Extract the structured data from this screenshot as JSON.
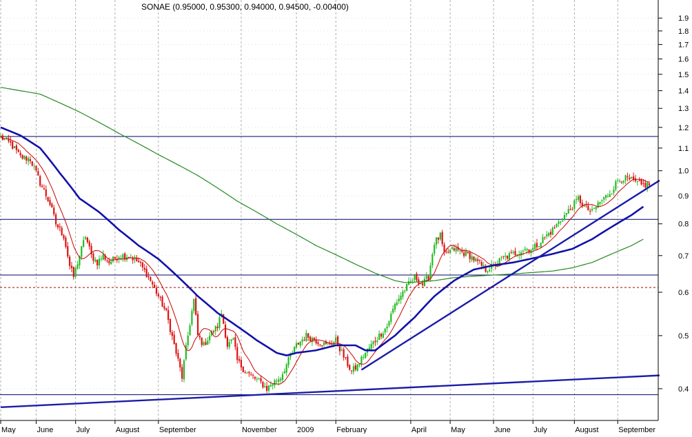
{
  "chart_data": {
    "type": "candlestick",
    "title": "SONAE (0.95000, 0.95300, 0.94000, 0.94500, -0.00400)",
    "y_scale": "log",
    "ylim": [
      0.35,
      2.05
    ],
    "y_ticks": [
      0.4,
      0.5,
      0.6,
      0.7,
      0.8,
      0.9,
      1.0,
      1.1,
      1.2,
      1.3,
      1.4,
      1.5,
      1.6,
      1.7,
      1.8,
      1.9
    ],
    "y_tick_labels": [
      "0.4",
      "0.5",
      "0.6",
      "0.7",
      "0.8",
      "0.9",
      "1.0",
      "1.1",
      "1.2",
      "1.3",
      "1.4",
      "1.5",
      "1.6",
      "1.7",
      "1.8",
      "1.9"
    ],
    "x_labels": [
      "May",
      "June",
      "July",
      "August",
      "September",
      "November",
      "2009",
      "February",
      "April",
      "May",
      "June",
      "July",
      "August",
      "September"
    ],
    "x_label_index": [
      0,
      18,
      38,
      58,
      80,
      122,
      150,
      170,
      208,
      228,
      250,
      270,
      291,
      313
    ],
    "session_count": 330,
    "grid": true,
    "colors": {
      "up_candle": "#22bb22",
      "down_candle": "#dd1111",
      "ma_short": "#cc0000",
      "ma_medium": "#1111aa",
      "ma_long": "#228822",
      "trendline": "#1c1ca8",
      "support_line": "#000066",
      "dotted_level": "#aa0000",
      "grid": "#999999"
    },
    "horizontal_levels": [
      1.155,
      0.815,
      0.645
    ],
    "dotted_level": 0.612,
    "trendlines": [
      {
        "x": [
          0,
          330
        ],
        "y": [
          0.37,
          0.423
        ]
      },
      {
        "x": [
          183,
          330
        ],
        "y": [
          0.433,
          0.96
        ]
      }
    ],
    "bottom_support_level": 0.39,
    "close_anchors": {
      "x": [
        0,
        5,
        10,
        15,
        20,
        25,
        28,
        32,
        35,
        37,
        40,
        43,
        46,
        49,
        52,
        55,
        60,
        65,
        70,
        75,
        80,
        84,
        88,
        92,
        95,
        98,
        100,
        103,
        106,
        110,
        112,
        115,
        118,
        120,
        124,
        128,
        132,
        135,
        138,
        142,
        146,
        150,
        155,
        160,
        165,
        170,
        175,
        178,
        181,
        184,
        188,
        192,
        196,
        200,
        204,
        207,
        210,
        214,
        217,
        220,
        223,
        225,
        227,
        230,
        234,
        238,
        242,
        246,
        250,
        254,
        258,
        262,
        266,
        270,
        275,
        280,
        285,
        290,
        293,
        296,
        300,
        303,
        306,
        310,
        313,
        316,
        320,
        325,
        329
      ],
      "y": [
        1.15,
        1.12,
        1.06,
        1.05,
        0.95,
        0.87,
        0.8,
        0.76,
        0.67,
        0.64,
        0.7,
        0.76,
        0.7,
        0.68,
        0.7,
        0.68,
        0.7,
        0.7,
        0.68,
        0.64,
        0.59,
        0.55,
        0.48,
        0.42,
        0.5,
        0.58,
        0.5,
        0.48,
        0.5,
        0.52,
        0.55,
        0.48,
        0.49,
        0.45,
        0.43,
        0.42,
        0.41,
        0.4,
        0.41,
        0.42,
        0.45,
        0.48,
        0.5,
        0.49,
        0.48,
        0.49,
        0.45,
        0.43,
        0.44,
        0.46,
        0.48,
        0.5,
        0.52,
        0.57,
        0.6,
        0.62,
        0.64,
        0.62,
        0.64,
        0.74,
        0.76,
        0.7,
        0.71,
        0.72,
        0.71,
        0.7,
        0.68,
        0.66,
        0.67,
        0.69,
        0.7,
        0.71,
        0.72,
        0.72,
        0.75,
        0.78,
        0.82,
        0.86,
        0.89,
        0.86,
        0.84,
        0.87,
        0.89,
        0.92,
        0.96,
        0.97,
        0.96,
        0.94,
        0.945
      ]
    },
    "ma_medium_anchors": {
      "x": [
        0,
        10,
        20,
        30,
        40,
        50,
        60,
        70,
        80,
        90,
        100,
        110,
        120,
        130,
        140,
        145,
        150,
        160,
        170,
        180,
        185,
        190,
        200,
        210,
        220,
        230,
        240,
        250,
        260,
        270,
        280,
        290,
        300,
        310,
        320,
        326
      ],
      "y": [
        1.2,
        1.16,
        1.1,
        0.99,
        0.89,
        0.84,
        0.78,
        0.73,
        0.69,
        0.64,
        0.59,
        0.55,
        0.52,
        0.49,
        0.465,
        0.46,
        0.465,
        0.47,
        0.48,
        0.48,
        0.47,
        0.47,
        0.5,
        0.54,
        0.59,
        0.63,
        0.66,
        0.672,
        0.68,
        0.692,
        0.705,
        0.72,
        0.75,
        0.79,
        0.83,
        0.86
      ]
    },
    "ma_long_anchors": {
      "x": [
        0,
        20,
        40,
        60,
        80,
        100,
        120,
        140,
        160,
        180,
        190,
        200,
        205,
        210,
        220,
        230,
        240,
        250,
        260,
        270,
        280,
        290,
        300,
        310,
        320,
        326
      ],
      "y": [
        1.42,
        1.38,
        1.28,
        1.17,
        1.07,
        0.98,
        0.88,
        0.8,
        0.73,
        0.675,
        0.65,
        0.63,
        0.625,
        0.626,
        0.63,
        0.638,
        0.642,
        0.645,
        0.648,
        0.652,
        0.656,
        0.665,
        0.68,
        0.705,
        0.73,
        0.75
      ]
    }
  }
}
